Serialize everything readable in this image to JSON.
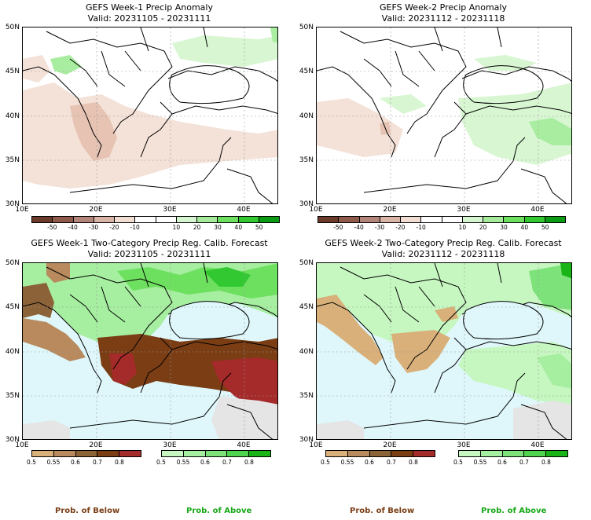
{
  "panels": [
    {
      "title": "GEFS Week-1 Precip Anomaly",
      "valid": "Valid: 20231105 - 20231111"
    },
    {
      "title": "GEFS Week-2 Precip Anomaly",
      "valid": "Valid: 20231112 - 20231118"
    },
    {
      "title": "GEFS Week-1 Two-Category Precip Reg. Calib. Forecast",
      "valid": "Valid: 20231105 - 20231111"
    },
    {
      "title": "GEFS Week-2 Two-Category Precip Reg. Calib. Forecast",
      "valid": "Valid: 20231112 - 20231118"
    }
  ],
  "lat_ticks": [
    "50N",
    "45N",
    "40N",
    "35N",
    "30N"
  ],
  "lon_ticks": [
    "10E",
    "20E",
    "30E",
    "40E"
  ],
  "anomaly_colorbar": {
    "colors": [
      "#6b3a2a",
      "#8f5a4a",
      "#b3857a",
      "#d9b4a6",
      "#f2ddd3",
      "#ffffff",
      "#ffffff",
      "#d5f5d0",
      "#a6eb9b",
      "#6ee060",
      "#32c832",
      "#0a9a14"
    ],
    "labels": [
      "-50",
      "-40",
      "-30",
      "-20",
      "-10",
      "10",
      "20",
      "30",
      "40",
      "50"
    ]
  },
  "below_colorbar": {
    "colors": [
      "#d9b07a",
      "#b88a5e",
      "#8c6239",
      "#7a3d14",
      "#a52a2a"
    ],
    "labels": [
      "0.5",
      "0.55",
      "0.6",
      "0.7",
      "0.8"
    ]
  },
  "above_colorbar": {
    "colors": [
      "#c6f7c0",
      "#a6eea0",
      "#7ee27a",
      "#4ed44e",
      "#18b418"
    ],
    "labels": [
      "0.5",
      "0.55",
      "0.6",
      "0.7",
      "0.8"
    ]
  },
  "legend": {
    "below": "Prob. of Below",
    "above": "Prob. of Above"
  },
  "colors": {
    "ocean_prob": "#dff7fb",
    "below_text": "#7a3d14",
    "above_text": "#18a818",
    "grey_land": "#e5e5e5"
  }
}
